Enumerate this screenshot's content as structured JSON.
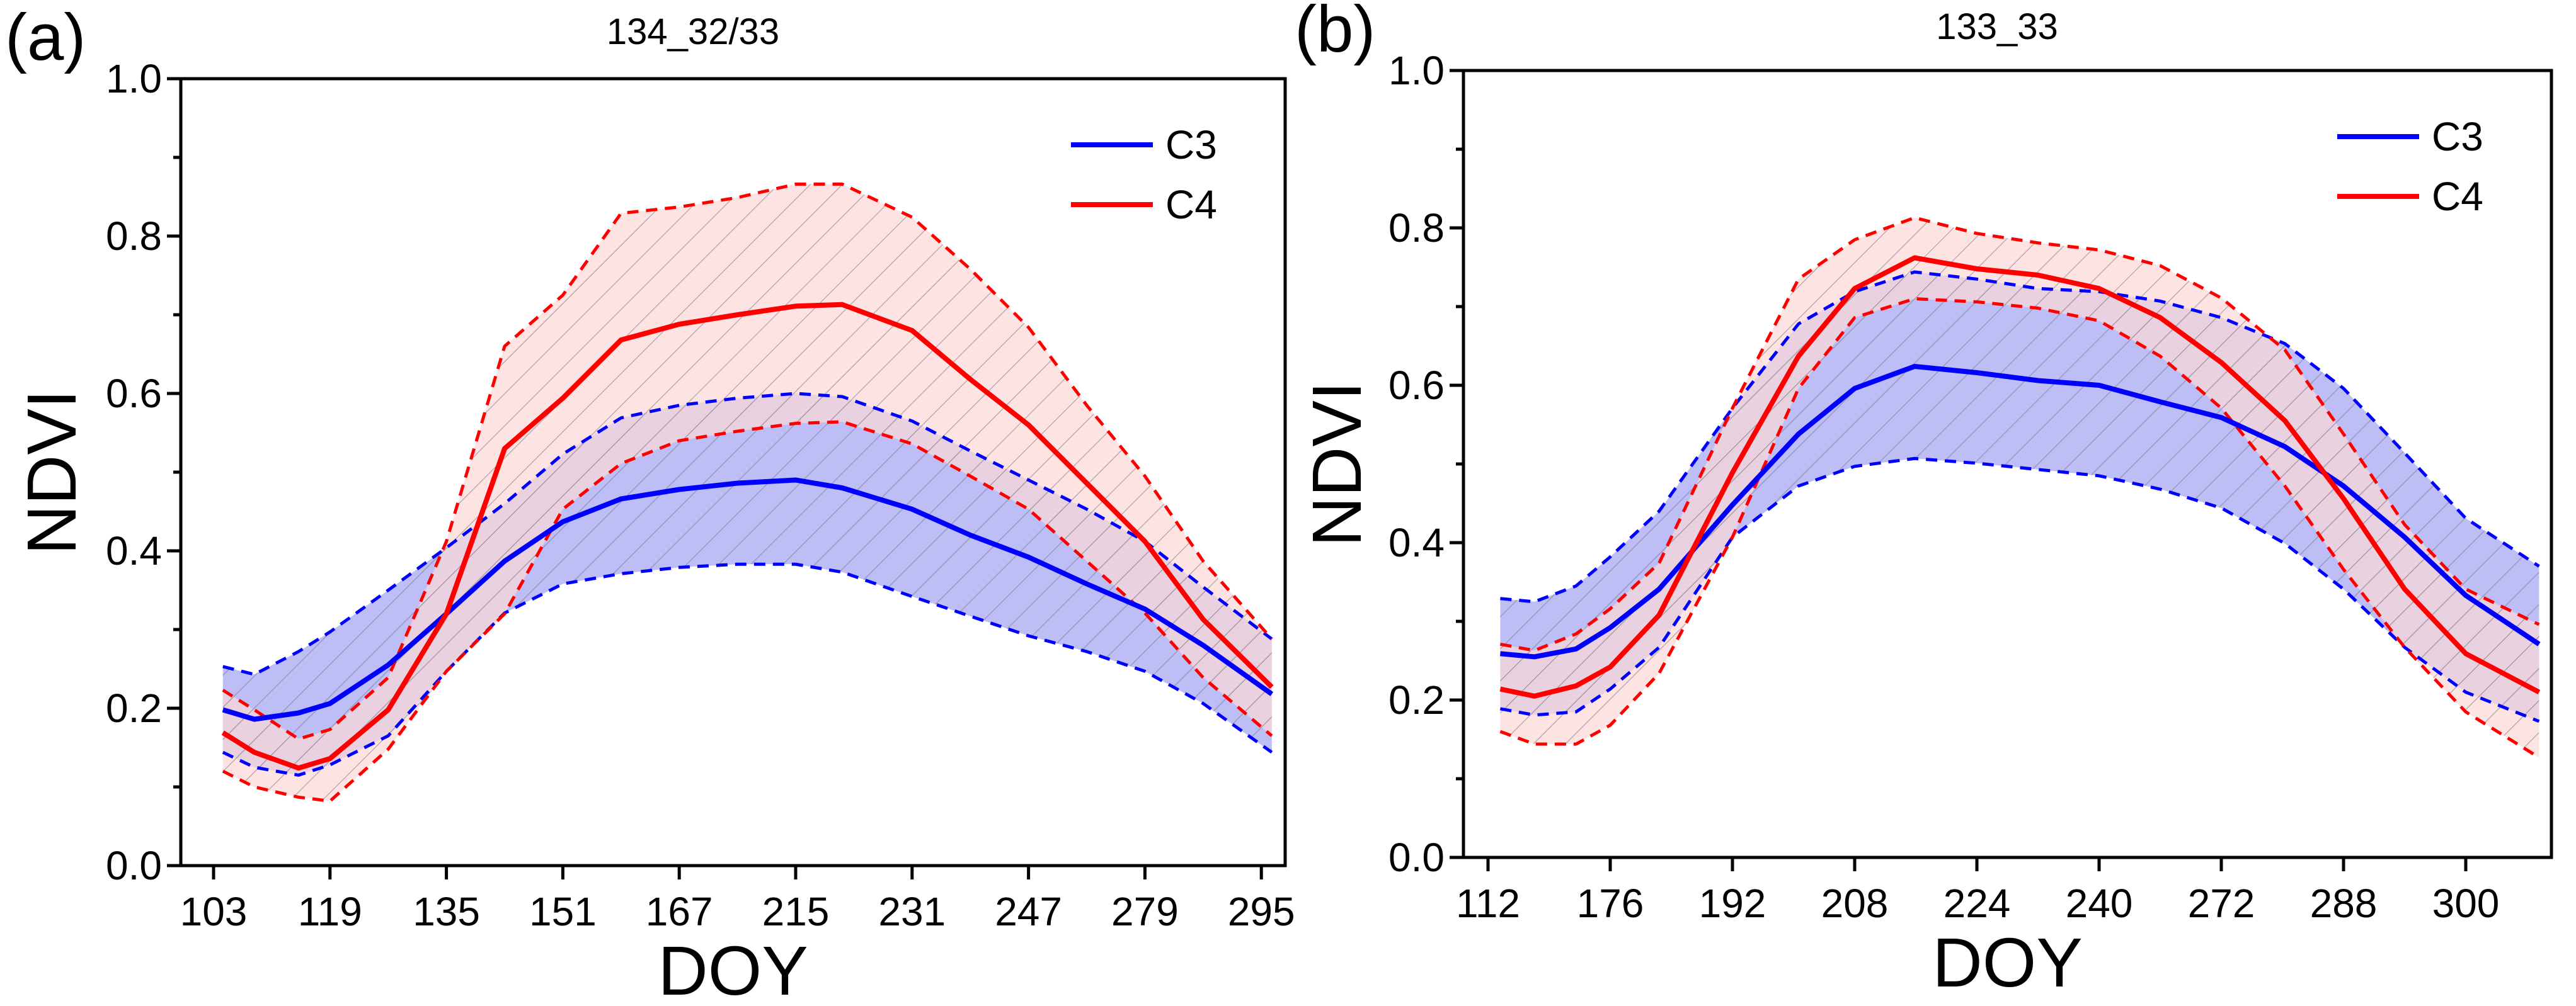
{
  "colors": {
    "c3": "#0000ff",
    "c4": "#ff0000",
    "c3_fill": "#b3b3f5",
    "c4_fill": "#fcd9d6",
    "hatch": "#8a8a9a"
  },
  "chart_data": [
    {
      "type": "line",
      "panel_label": "(a)",
      "title": "134_32/33",
      "xlabel": "DOY",
      "ylabel": "NDVI",
      "ylim": [
        0,
        1.0
      ],
      "yticks": [
        "0.0",
        "0.2",
        "0.4",
        "0.6",
        "0.8",
        "1.0"
      ],
      "xtick_labels": [
        "103",
        "119",
        "135",
        "151",
        "167",
        "215",
        "231",
        "247",
        "279",
        "295"
      ],
      "x_note": "x values are positions in tick-index units (categorical DOY axis)",
      "legend": {
        "placement": "top-right",
        "entries": [
          "C3",
          "C4"
        ]
      },
      "x": [
        0.08,
        0.35,
        0.73,
        1,
        1.5,
        2,
        2.5,
        3,
        3.5,
        4,
        4.5,
        5,
        5.4,
        6,
        6.5,
        7,
        7.5,
        8,
        8.5,
        9.09
      ],
      "series": [
        {
          "name": "C3",
          "mean": [
            0.198,
            0.186,
            0.194,
            0.206,
            0.255,
            0.32,
            0.387,
            0.437,
            0.466,
            0.478,
            0.486,
            0.49,
            0.48,
            0.453,
            0.42,
            0.392,
            0.358,
            0.326,
            0.28,
            0.218
          ],
          "upper": [
            0.253,
            0.243,
            0.272,
            0.297,
            0.35,
            0.404,
            0.46,
            0.523,
            0.569,
            0.585,
            0.594,
            0.6,
            0.596,
            0.565,
            0.527,
            0.49,
            0.453,
            0.412,
            0.354,
            0.288
          ],
          "lower": [
            0.144,
            0.125,
            0.115,
            0.128,
            0.165,
            0.247,
            0.321,
            0.358,
            0.371,
            0.379,
            0.383,
            0.383,
            0.373,
            0.342,
            0.317,
            0.292,
            0.272,
            0.247,
            0.206,
            0.144
          ]
        },
        {
          "name": "C4",
          "mean": [
            0.169,
            0.144,
            0.124,
            0.136,
            0.198,
            0.32,
            0.53,
            0.594,
            0.668,
            0.688,
            0.7,
            0.711,
            0.713,
            0.68,
            0.618,
            0.56,
            0.486,
            0.412,
            0.313,
            0.227
          ],
          "upper": [
            0.223,
            0.198,
            0.161,
            0.173,
            0.239,
            0.412,
            0.66,
            0.725,
            0.829,
            0.837,
            0.849,
            0.866,
            0.866,
            0.824,
            0.758,
            0.684,
            0.585,
            0.495,
            0.387,
            0.288
          ],
          "lower": [
            0.12,
            0.1,
            0.087,
            0.082,
            0.148,
            0.247,
            0.32,
            0.453,
            0.511,
            0.54,
            0.552,
            0.562,
            0.564,
            0.536,
            0.495,
            0.453,
            0.387,
            0.321,
            0.239,
            0.165
          ]
        }
      ]
    },
    {
      "type": "line",
      "panel_label": "(b)",
      "title": "133_33",
      "xlabel": "DOY",
      "ylabel": "NDVI",
      "ylim": [
        0,
        1.0
      ],
      "yticks": [
        "0.0",
        "0.2",
        "0.4",
        "0.6",
        "0.8",
        "1.0"
      ],
      "xtick_labels": [
        "112",
        "176",
        "192",
        "208",
        "224",
        "240",
        "272",
        "288",
        "300"
      ],
      "x_note": "x values are positions in tick-index units (categorical DOY axis)",
      "legend": {
        "placement": "top-right",
        "entries": [
          "C3",
          "C4"
        ]
      },
      "x": [
        0.1,
        0.38,
        0.72,
        1,
        1.4,
        2,
        2.54,
        3,
        3.49,
        4,
        4.5,
        5,
        5.5,
        6,
        6.52,
        7,
        7.5,
        8,
        8.6
      ],
      "series": [
        {
          "name": "C3",
          "mean": [
            0.259,
            0.255,
            0.265,
            0.292,
            0.341,
            0.448,
            0.538,
            0.596,
            0.624,
            0.616,
            0.606,
            0.6,
            0.579,
            0.559,
            0.522,
            0.472,
            0.407,
            0.333,
            0.271
          ],
          "upper": [
            0.329,
            0.325,
            0.345,
            0.382,
            0.44,
            0.571,
            0.678,
            0.719,
            0.744,
            0.735,
            0.723,
            0.719,
            0.707,
            0.686,
            0.653,
            0.596,
            0.514,
            0.431,
            0.37
          ],
          "lower": [
            0.189,
            0.181,
            0.185,
            0.214,
            0.267,
            0.407,
            0.472,
            0.497,
            0.507,
            0.501,
            0.493,
            0.485,
            0.468,
            0.444,
            0.399,
            0.341,
            0.267,
            0.21,
            0.173
          ]
        },
        {
          "name": "C4",
          "mean": [
            0.214,
            0.205,
            0.218,
            0.242,
            0.308,
            0.489,
            0.637,
            0.723,
            0.762,
            0.748,
            0.74,
            0.723,
            0.686,
            0.629,
            0.555,
            0.456,
            0.341,
            0.259,
            0.21
          ],
          "upper": [
            0.271,
            0.263,
            0.284,
            0.316,
            0.374,
            0.571,
            0.735,
            0.785,
            0.813,
            0.793,
            0.781,
            0.772,
            0.752,
            0.711,
            0.645,
            0.538,
            0.423,
            0.341,
            0.296
          ],
          "lower": [
            0.16,
            0.144,
            0.144,
            0.168,
            0.234,
            0.407,
            0.596,
            0.686,
            0.71,
            0.706,
            0.698,
            0.682,
            0.637,
            0.571,
            0.472,
            0.366,
            0.267,
            0.185,
            0.127
          ]
        }
      ]
    }
  ]
}
